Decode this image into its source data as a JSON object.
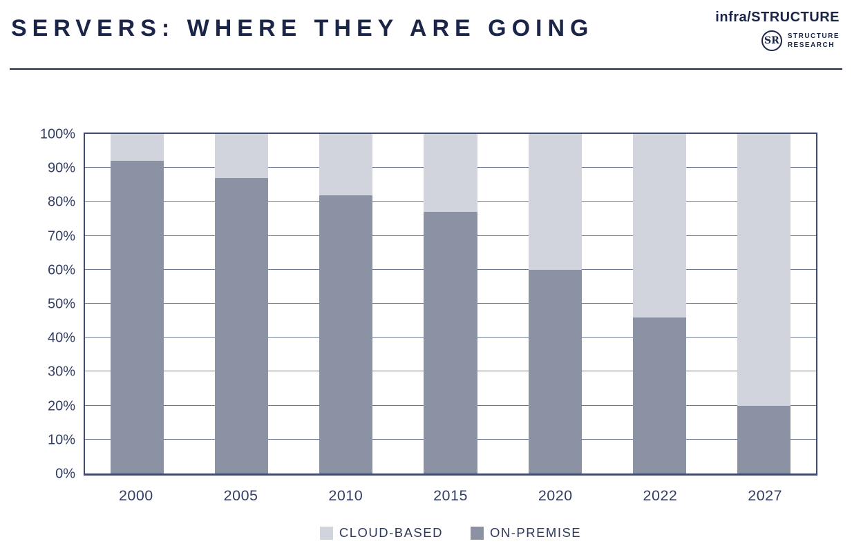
{
  "header": {
    "title": "SERVERS: WHERE THEY ARE GOING",
    "brand": {
      "wordmark": "infra/STRUCTURE",
      "monogram": "SR",
      "org_line1": "STRUCTURE",
      "org_line2": "RESEARCH"
    }
  },
  "chart_data": {
    "type": "bar",
    "stacked": true,
    "title": "",
    "xlabel": "",
    "ylabel": "",
    "categories": [
      "2000",
      "2005",
      "2010",
      "2015",
      "2020",
      "2022",
      "2027"
    ],
    "series": [
      {
        "name": "CLOUD-BASED",
        "color": "#d1d4dd",
        "values": [
          8,
          13,
          18,
          23,
          40,
          54,
          80
        ]
      },
      {
        "name": "ON-PREMISE",
        "color": "#8b92a4",
        "values": [
          92,
          87,
          82,
          77,
          60,
          46,
          20
        ]
      }
    ],
    "ylim": [
      0,
      100
    ],
    "yticks": [
      0,
      10,
      20,
      30,
      40,
      50,
      60,
      70,
      80,
      90,
      100
    ],
    "ytick_suffix": "%",
    "grid": true,
    "legend_position": "bottom"
  },
  "colors": {
    "navy_text": "#1b2547",
    "axis_text": "#323e66",
    "gridline": "#6e7795",
    "plot_border": "#3f4a70"
  }
}
